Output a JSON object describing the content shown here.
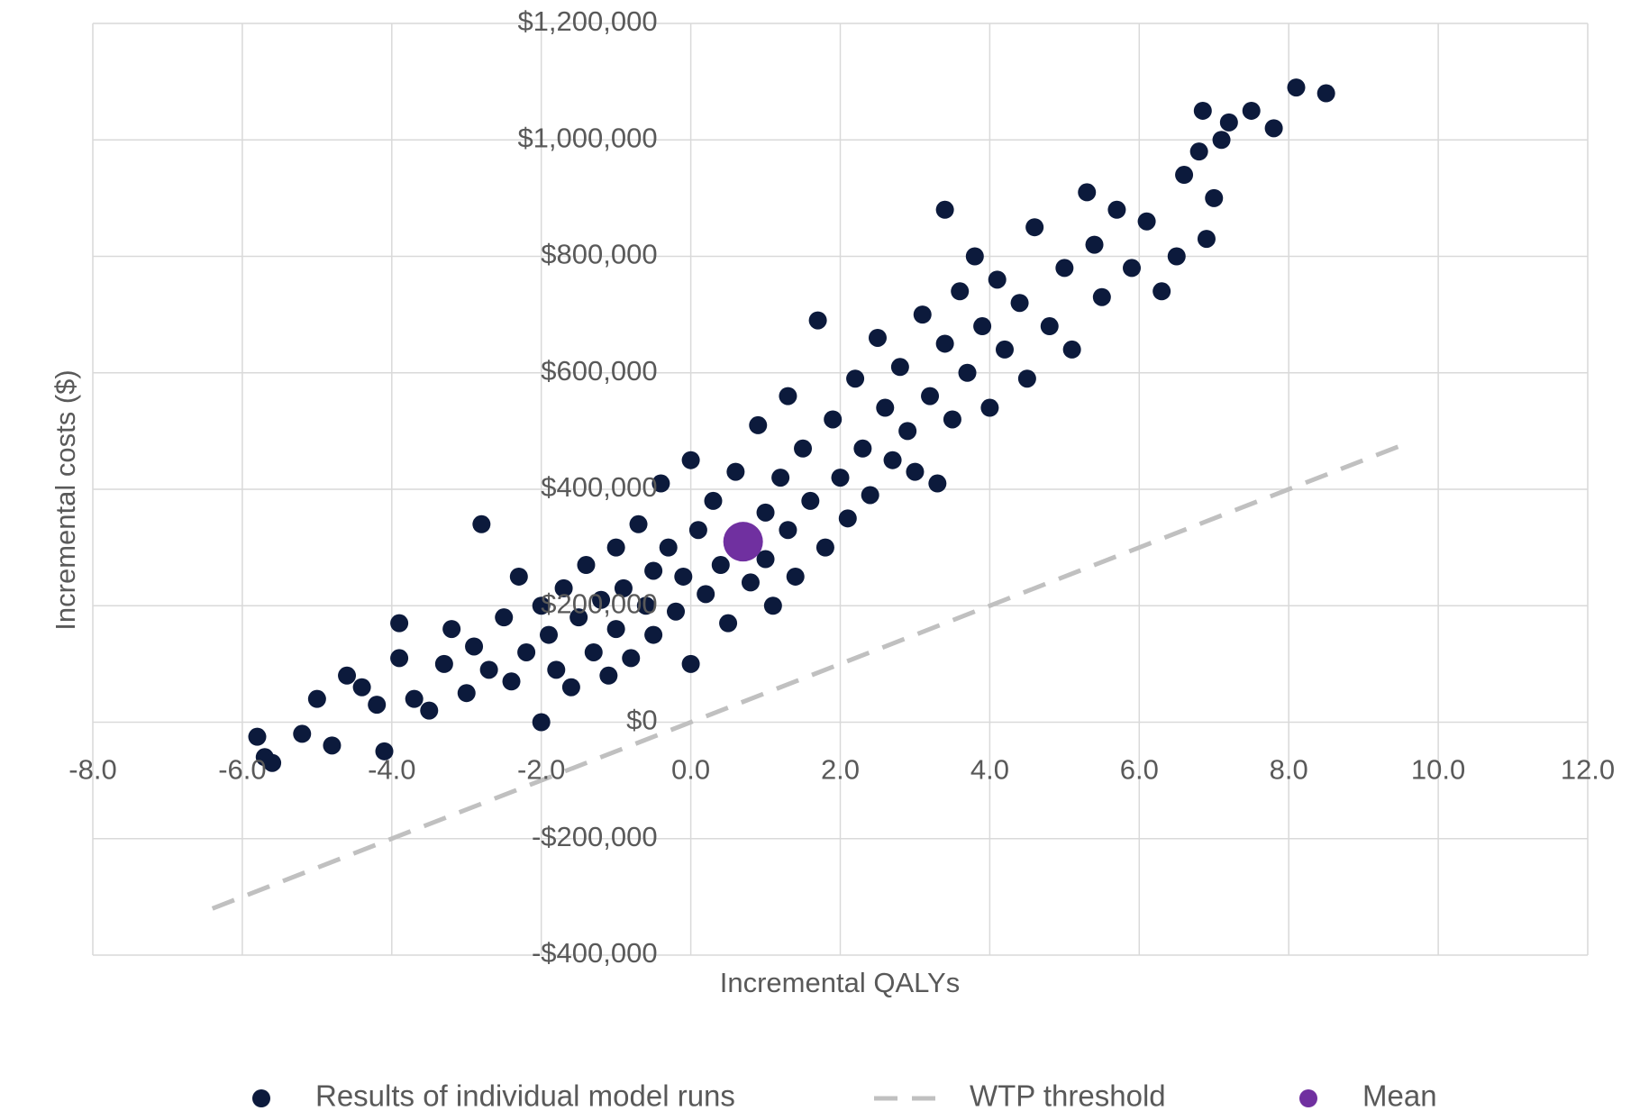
{
  "chart_data": {
    "type": "scatter",
    "x_label": "Incremental QALYs",
    "y_label": "Incremental costs ($)",
    "xlim": [
      -8,
      12
    ],
    "ylim": [
      -400000,
      1200000
    ],
    "xticks": [
      {
        "value": -8,
        "label": "-8.0"
      },
      {
        "value": -6,
        "label": "-6.0"
      },
      {
        "value": -4,
        "label": "-4.0"
      },
      {
        "value": -2,
        "label": "-2.0"
      },
      {
        "value": 0,
        "label": "0.0"
      },
      {
        "value": 2,
        "label": "2.0"
      },
      {
        "value": 4,
        "label": "4.0"
      },
      {
        "value": 6,
        "label": "6.0"
      },
      {
        "value": 8,
        "label": "8.0"
      },
      {
        "value": 10,
        "label": "10.0"
      },
      {
        "value": 12,
        "label": "12.0"
      }
    ],
    "yticks": [
      {
        "value": -400000,
        "label": "-$400,000"
      },
      {
        "value": -200000,
        "label": "-$200,000"
      },
      {
        "value": 0,
        "label": "$0"
      },
      {
        "value": 200000,
        "label": "$200,000"
      },
      {
        "value": 400000,
        "label": "$400,000"
      },
      {
        "value": 600000,
        "label": "$600,000"
      },
      {
        "value": 800000,
        "label": "$800,000"
      },
      {
        "value": 1000000,
        "label": "$1,000,000"
      },
      {
        "value": 1200000,
        "label": "$1,200,000"
      }
    ],
    "grid": true,
    "legend": "bottom",
    "series": [
      {
        "name": "Results of individual model runs",
        "color": "#0c1a3c",
        "mark": "dot",
        "x": [
          -5.8,
          -5.7,
          -5.6,
          -5.2,
          -5.0,
          -4.8,
          -4.6,
          -4.4,
          -4.2,
          -4.1,
          -3.9,
          -3.9,
          -3.7,
          -3.5,
          -3.3,
          -3.2,
          -3.0,
          -2.9,
          -2.8,
          -2.7,
          -2.5,
          -2.4,
          -2.3,
          -2.2,
          -2.0,
          -2.0,
          -1.9,
          -1.8,
          -1.7,
          -1.6,
          -1.5,
          -1.4,
          -1.3,
          -1.2,
          -1.1,
          -1.0,
          -1.0,
          -0.9,
          -0.8,
          -0.7,
          -0.6,
          -0.5,
          -0.5,
          -0.4,
          -0.3,
          -0.2,
          -0.1,
          0,
          0,
          0.1,
          0.2,
          0.3,
          0.4,
          0.5,
          0.6,
          0.7,
          0.8,
          0.9,
          1.0,
          1.0,
          1.1,
          1.2,
          1.3,
          1.3,
          1.4,
          1.5,
          1.6,
          1.7,
          1.8,
          1.9,
          2.0,
          2.1,
          2.2,
          2.3,
          2.4,
          2.5,
          2.6,
          2.7,
          2.8,
          2.9,
          3.0,
          3.1,
          3.2,
          3.3,
          3.4,
          3.4,
          3.5,
          3.6,
          3.7,
          3.8,
          3.9,
          4.0,
          4.1,
          4.2,
          4.4,
          4.5,
          4.6,
          4.8,
          5.0,
          5.1,
          5.3,
          5.4,
          5.5,
          5.7,
          5.9,
          6.1,
          6.3,
          6.5,
          6.6,
          6.8,
          6.9,
          7.0,
          7.1,
          7.2,
          6.85,
          7.5,
          7.8,
          8.1,
          8.5
        ],
        "values": [
          -25000,
          -60000,
          -70000,
          -20000,
          40000,
          -40000,
          80000,
          60000,
          30000,
          -50000,
          170000,
          110000,
          40000,
          20000,
          100000,
          160000,
          50000,
          130000,
          340000,
          90000,
          180000,
          70000,
          250000,
          120000,
          0,
          200000,
          150000,
          90000,
          230000,
          60000,
          180000,
          270000,
          120000,
          210000,
          80000,
          300000,
          160000,
          230000,
          110000,
          340000,
          200000,
          260000,
          150000,
          410000,
          300000,
          190000,
          250000,
          450000,
          100000,
          330000,
          220000,
          380000,
          270000,
          170000,
          430000,
          320000,
          240000,
          510000,
          360000,
          280000,
          200000,
          420000,
          560000,
          330000,
          250000,
          470000,
          380000,
          690000,
          300000,
          520000,
          420000,
          350000,
          590000,
          470000,
          390000,
          660000,
          540000,
          450000,
          610000,
          500000,
          430000,
          700000,
          560000,
          410000,
          880000,
          650000,
          520000,
          740000,
          600000,
          800000,
          680000,
          540000,
          760000,
          640000,
          720000,
          590000,
          850000,
          680000,
          780000,
          640000,
          910000,
          820000,
          730000,
          880000,
          780000,
          860000,
          740000,
          800000,
          940000,
          980000,
          830000,
          900000,
          1000000,
          1030000,
          1050000,
          1050000,
          1020000,
          1090000,
          1080000
        ]
      },
      {
        "name": "WTP threshold",
        "color": "#c0c0c0",
        "mark": "dashed-line",
        "x": [
          -6.4,
          9.5
        ],
        "values": [
          -320000,
          475000
        ]
      },
      {
        "name": "Mean",
        "color": "#7030a0",
        "mark": "big-dot",
        "x": [
          0.7
        ],
        "values": [
          310000
        ]
      }
    ]
  }
}
